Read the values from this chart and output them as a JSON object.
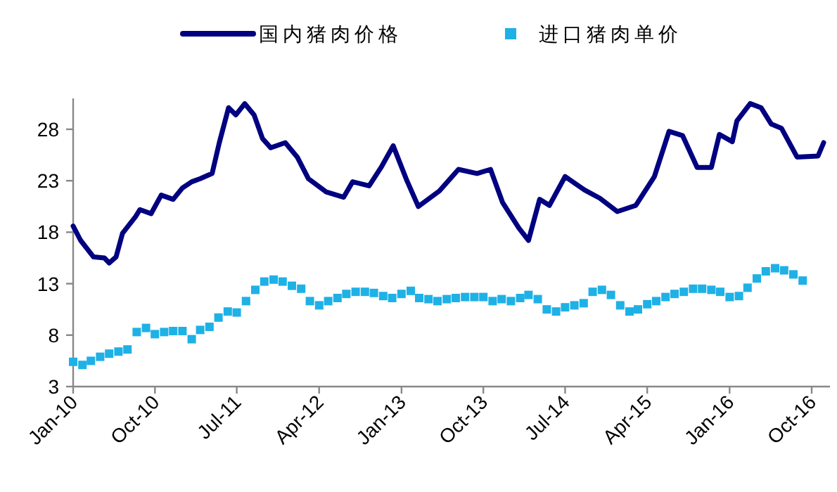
{
  "chart_data": {
    "type": "line",
    "legend": "top",
    "grid": false,
    "xlim": [
      "2010-01-01",
      "2016-12-01"
    ],
    "xticks": [
      {
        "value": "2010-01",
        "label": "Jan-10"
      },
      {
        "value": "2010-10",
        "label": "Oct-10"
      },
      {
        "value": "2011-07",
        "label": "Jul-11"
      },
      {
        "value": "2012-04",
        "label": "Apr-12"
      },
      {
        "value": "2013-01",
        "label": "Jan-13"
      },
      {
        "value": "2013-10",
        "label": "Oct-13"
      },
      {
        "value": "2014-07",
        "label": "Jul-14"
      },
      {
        "value": "2015-04",
        "label": "Apr-15"
      },
      {
        "value": "2016-01",
        "label": "Jan-16"
      },
      {
        "value": "2016-10",
        "label": "Oct-16"
      }
    ],
    "ylim": [
      3,
      31
    ],
    "yticks": [
      3,
      8,
      13,
      18,
      23,
      28
    ],
    "series": [
      {
        "name": "国内猪肉价格",
        "type": "line",
        "color": "#000080",
        "line_style": "solid",
        "marker": "none",
        "x": [
          "2010-01-01",
          "2010-01-26",
          "2010-03-10",
          "2010-04-15",
          "2010-05-01",
          "2010-05-24",
          "2010-06-15",
          "2010-07-28",
          "2010-08-12",
          "2010-09-18",
          "2010-10-22",
          "2010-12-01",
          "2011-01-01",
          "2011-02-01",
          "2011-03-01",
          "2011-04-10",
          "2011-05-04",
          "2011-06-04",
          "2011-06-28",
          "2011-07-28",
          "2011-08-28",
          "2011-09-25",
          "2011-10-22",
          "2011-12-10",
          "2012-01-19",
          "2012-02-25",
          "2012-04-25",
          "2012-06-22",
          "2012-07-22",
          "2012-09-15",
          "2012-10-25",
          "2012-12-04",
          "2013-01-19",
          "2013-02-26",
          "2013-05-07",
          "2013-07-10",
          "2013-09-10",
          "2013-10-25",
          "2013-12-04",
          "2014-01-28",
          "2014-03-01",
          "2014-04-07",
          "2014-05-10",
          "2014-07-01",
          "2014-09-04",
          "2014-10-25",
          "2014-12-22",
          "2015-02-22",
          "2015-04-25",
          "2015-06-13",
          "2015-07-28",
          "2015-09-15",
          "2015-11-01",
          "2015-11-28",
          "2016-01-10",
          "2016-01-25",
          "2016-03-10",
          "2016-04-15",
          "2016-05-19",
          "2016-06-22",
          "2016-08-13",
          "2016-10-22",
          "2016-11-10"
        ],
        "values": [
          18.6,
          17.2,
          15.6,
          15.5,
          15.0,
          15.6,
          17.9,
          19.5,
          20.2,
          19.8,
          21.6,
          21.2,
          22.3,
          22.9,
          23.2,
          23.7,
          26.7,
          30.1,
          29.4,
          30.5,
          29.4,
          27.1,
          26.2,
          26.7,
          25.3,
          23.2,
          21.9,
          21.4,
          22.9,
          22.5,
          24.3,
          26.4,
          23.0,
          20.5,
          22.0,
          24.1,
          23.7,
          24.1,
          20.9,
          18.4,
          17.2,
          21.2,
          20.6,
          23.4,
          22.1,
          21.3,
          20.0,
          20.6,
          23.4,
          27.8,
          27.4,
          24.3,
          24.3,
          27.5,
          26.8,
          28.8,
          30.5,
          30.1,
          28.5,
          28.1,
          25.3,
          25.4,
          26.7
        ]
      },
      {
        "name": "进口猪肉单价",
        "type": "scatter",
        "color": "#1eb1e6",
        "marker": "square",
        "x": [
          "2010-01",
          "2010-02",
          "2010-03",
          "2010-04",
          "2010-05",
          "2010-06",
          "2010-07",
          "2010-08",
          "2010-09",
          "2010-10",
          "2010-11",
          "2010-12",
          "2011-01",
          "2011-02",
          "2011-03",
          "2011-04",
          "2011-05",
          "2011-06",
          "2011-07",
          "2011-08",
          "2011-09",
          "2011-10",
          "2011-11",
          "2011-12",
          "2012-01",
          "2012-02",
          "2012-03",
          "2012-04",
          "2012-05",
          "2012-06",
          "2012-07",
          "2012-08",
          "2012-09",
          "2012-10",
          "2012-11",
          "2012-12",
          "2013-01",
          "2013-02",
          "2013-03",
          "2013-04",
          "2013-05",
          "2013-06",
          "2013-07",
          "2013-08",
          "2013-09",
          "2013-10",
          "2013-11",
          "2013-12",
          "2014-01",
          "2014-02",
          "2014-03",
          "2014-04",
          "2014-05",
          "2014-06",
          "2014-07",
          "2014-08",
          "2014-09",
          "2014-10",
          "2014-11",
          "2014-12",
          "2015-01",
          "2015-02",
          "2015-03",
          "2015-04",
          "2015-05",
          "2015-06",
          "2015-07",
          "2015-08",
          "2015-09",
          "2015-10",
          "2015-11",
          "2015-12",
          "2016-01",
          "2016-02",
          "2016-03",
          "2016-04",
          "2016-05",
          "2016-06",
          "2016-07",
          "2016-08",
          "2016-09"
        ],
        "values": [
          5.4,
          5.1,
          5.5,
          5.9,
          6.2,
          6.4,
          6.6,
          8.3,
          8.7,
          8.1,
          8.3,
          8.4,
          8.4,
          7.6,
          8.5,
          8.8,
          9.7,
          10.3,
          10.2,
          11.3,
          12.4,
          13.2,
          13.4,
          13.2,
          12.8,
          12.5,
          11.3,
          10.9,
          11.3,
          11.6,
          12.0,
          12.2,
          12.2,
          12.1,
          11.8,
          11.6,
          12.0,
          12.3,
          11.6,
          11.5,
          11.3,
          11.5,
          11.6,
          11.7,
          11.7,
          11.7,
          11.3,
          11.5,
          11.3,
          11.6,
          11.9,
          11.5,
          10.5,
          10.3,
          10.7,
          10.9,
          11.1,
          12.2,
          12.4,
          11.9,
          10.9,
          10.3,
          10.5,
          11.0,
          11.3,
          11.7,
          12.0,
          12.2,
          12.5,
          12.5,
          12.4,
          12.2,
          11.7,
          11.8,
          12.6,
          13.5,
          14.2,
          14.5,
          14.3,
          13.9,
          13.3
        ]
      }
    ]
  }
}
